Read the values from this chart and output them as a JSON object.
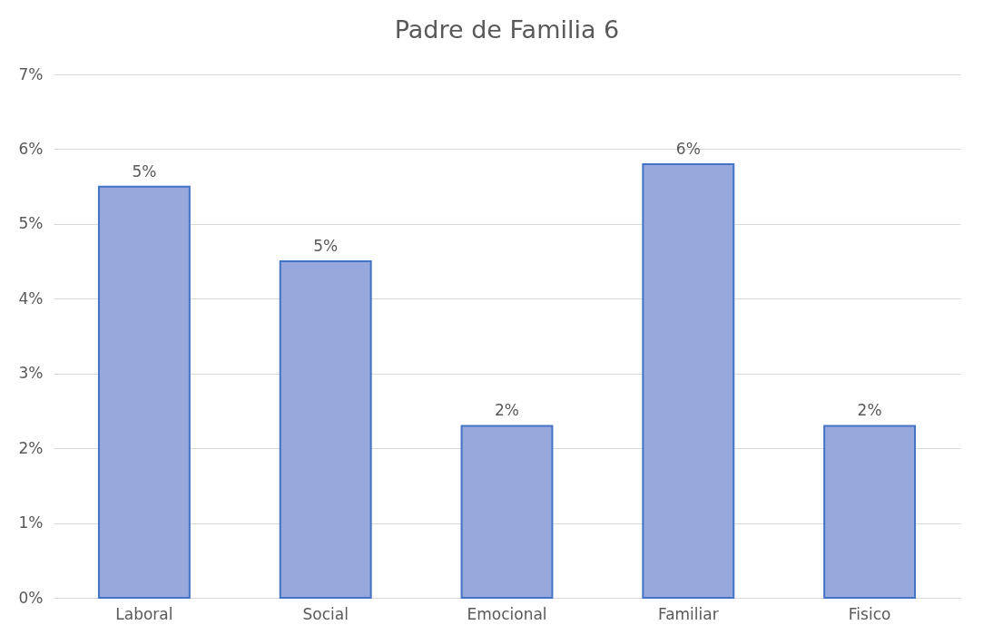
{
  "chart_data": {
    "type": "bar",
    "title": "Padre de Familia 6",
    "categories": [
      "Laboral",
      "Social",
      "Emocional",
      "Familiar",
      "Fisico"
    ],
    "values": [
      5.5,
      4.5,
      2.3,
      5.8,
      2.3
    ],
    "value_labels": [
      "5%",
      "5%",
      "2%",
      "6%",
      "2%"
    ],
    "color": "#97a9dc",
    "ylim": [
      0,
      7
    ],
    "yticks": [
      {
        "value": 0,
        "label": "0%"
      },
      {
        "value": 1,
        "label": "1%"
      },
      {
        "value": 2,
        "label": "2%"
      },
      {
        "value": 3,
        "label": "3%"
      },
      {
        "value": 4,
        "label": "4%"
      },
      {
        "value": 5,
        "label": "5%"
      },
      {
        "value": 6,
        "label": "6%"
      },
      {
        "value": 7,
        "label": "7%"
      }
    ],
    "grid": "y"
  }
}
